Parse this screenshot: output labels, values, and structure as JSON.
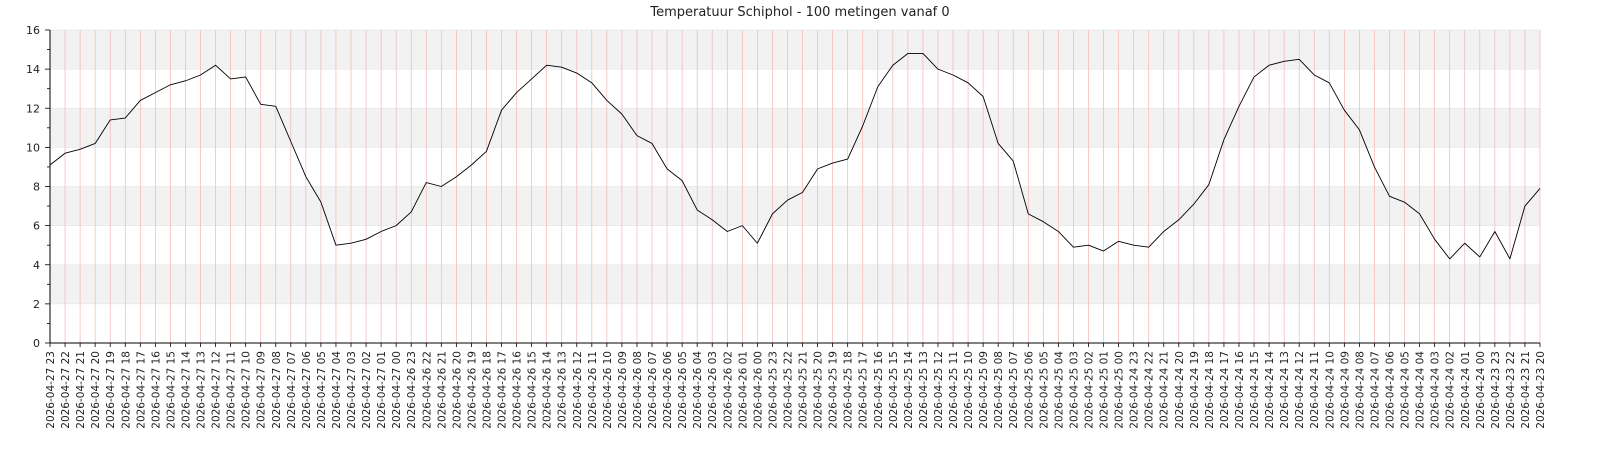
{
  "chart_data": {
    "type": "line",
    "title": "Temperatuur Schiphol - 100 metingen vanaf 0",
    "xlabel": "",
    "ylabel": "",
    "ylim": [
      0,
      16
    ],
    "yticks": [
      0,
      2,
      4,
      6,
      8,
      10,
      12,
      14,
      16
    ],
    "grid": true,
    "colors": {
      "line": "#000000",
      "vgrid": "#f4b5b5",
      "band": "#f2f2f2",
      "hgrid": "#e0e0e0",
      "axis": "#000000"
    },
    "x": [
      "2026-04-27 23",
      "2026-04-27 22",
      "2026-04-27 21",
      "2026-04-27 20",
      "2026-04-27 19",
      "2026-04-27 18",
      "2026-04-27 17",
      "2026-04-27 16",
      "2026-04-27 15",
      "2026-04-27 14",
      "2026-04-27 13",
      "2026-04-27 12",
      "2026-04-27 11",
      "2026-04-27 10",
      "2026-04-27 09",
      "2026-04-27 08",
      "2026-04-27 07",
      "2026-04-27 06",
      "2026-04-27 05",
      "2026-04-27 04",
      "2026-04-27 03",
      "2026-04-27 02",
      "2026-04-27 01",
      "2026-04-27 00",
      "2026-04-26 23",
      "2026-04-26 22",
      "2026-04-26 21",
      "2026-04-26 20",
      "2026-04-26 19",
      "2026-04-26 18",
      "2026-04-26 17",
      "2026-04-26 16",
      "2026-04-26 15",
      "2026-04-26 14",
      "2026-04-26 13",
      "2026-04-26 12",
      "2026-04-26 11",
      "2026-04-26 10",
      "2026-04-26 09",
      "2026-04-26 08",
      "2026-04-26 07",
      "2026-04-26 06",
      "2026-04-26 05",
      "2026-04-26 04",
      "2026-04-26 03",
      "2026-04-26 02",
      "2026-04-26 01",
      "2026-04-26 00",
      "2026-04-25 23",
      "2026-04-25 22",
      "2026-04-25 21",
      "2026-04-25 20",
      "2026-04-25 19",
      "2026-04-25 18",
      "2026-04-25 17",
      "2026-04-25 16",
      "2026-04-25 15",
      "2026-04-25 14",
      "2026-04-25 13",
      "2026-04-25 12",
      "2026-04-25 11",
      "2026-04-25 10",
      "2026-04-25 09",
      "2026-04-25 08",
      "2026-04-25 07",
      "2026-04-25 06",
      "2026-04-25 05",
      "2026-04-25 04",
      "2026-04-25 03",
      "2026-04-25 02",
      "2026-04-25 01",
      "2026-04-25 00",
      "2026-04-24 23",
      "2026-04-24 22",
      "2026-04-24 21",
      "2026-04-24 20",
      "2026-04-24 19",
      "2026-04-24 18",
      "2026-04-24 17",
      "2026-04-24 16",
      "2026-04-24 15",
      "2026-04-24 14",
      "2026-04-24 13",
      "2026-04-24 12",
      "2026-04-24 11",
      "2026-04-24 10",
      "2026-04-24 09",
      "2026-04-24 08",
      "2026-04-24 07",
      "2026-04-24 06",
      "2026-04-24 05",
      "2026-04-24 04",
      "2026-04-24 03",
      "2026-04-24 02",
      "2026-04-24 01",
      "2026-04-24 00",
      "2026-04-23 23",
      "2026-04-23 22",
      "2026-04-23 21",
      "2026-04-23 20"
    ],
    "series": [
      {
        "values": [
          9.1,
          9.7,
          9.9,
          10.2,
          11.4,
          11.5,
          12.4,
          12.8,
          13.2,
          13.4,
          13.7,
          14.2,
          13.5,
          13.6,
          12.2,
          12.1,
          10.3,
          8.5,
          7.2,
          5.0,
          5.1,
          5.3,
          5.7,
          6.0,
          6.7,
          8.2,
          8.0,
          8.5,
          9.1,
          9.8,
          11.9,
          12.8,
          13.5,
          14.2,
          14.1,
          13.8,
          13.3,
          12.4,
          11.7,
          10.6,
          10.2,
          8.9,
          8.3,
          6.8,
          6.3,
          5.7,
          6.0,
          5.1,
          6.6,
          7.3,
          7.7,
          8.9,
          9.2,
          9.4,
          11.1,
          13.1,
          14.2,
          14.8,
          14.8,
          14.0,
          13.7,
          13.3,
          12.6,
          10.2,
          9.3,
          6.6,
          6.2,
          5.7,
          4.9,
          5.0,
          4.7,
          5.2,
          5.0,
          4.9,
          5.7,
          6.3,
          7.1,
          8.1,
          10.4,
          12.1,
          13.6,
          14.2,
          14.4,
          14.5,
          13.7,
          13.3,
          11.9,
          10.9,
          9.0,
          7.5,
          7.2,
          6.6,
          5.3,
          4.3,
          5.1,
          4.4,
          5.7,
          4.3,
          7.0,
          7.9
        ]
      }
    ]
  }
}
